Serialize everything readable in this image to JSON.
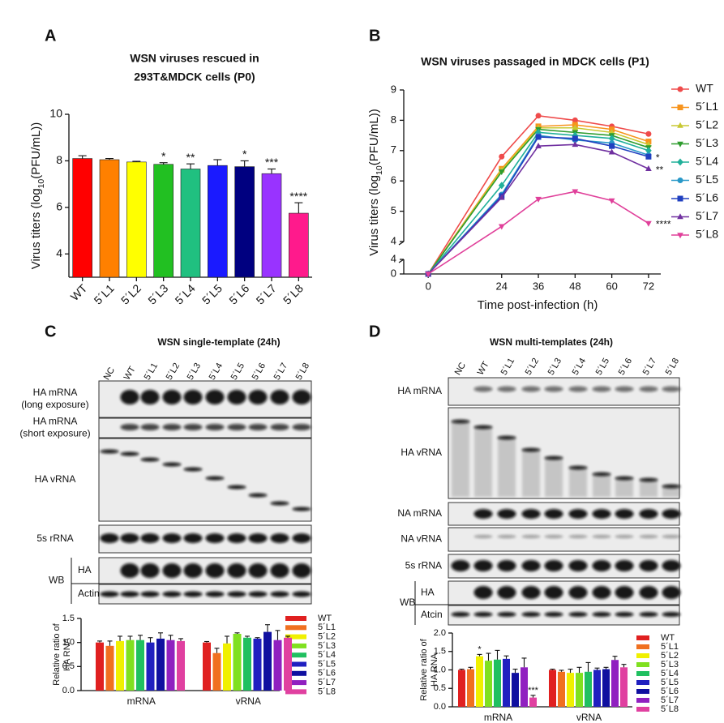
{
  "chart_data": [
    {
      "type": "bar",
      "panel": "A",
      "title_lines": [
        "WSN viruses rescued in",
        "293T&MDCK cells (P0)"
      ],
      "ylabel_parts": [
        "Virus titers (log",
        "10",
        "(PFU/mL))"
      ],
      "categories": [
        "WT",
        "5´L1",
        "5´L2",
        "5´L3",
        "5´L4",
        "5´L5",
        "5´L6",
        "5´L7",
        "5´L8"
      ],
      "values": [
        8.1,
        8.05,
        7.95,
        7.85,
        7.65,
        7.8,
        7.75,
        7.45,
        5.75
      ],
      "errors": [
        0.12,
        0.05,
        0.03,
        0.07,
        0.22,
        0.25,
        0.25,
        0.2,
        0.45
      ],
      "sig": [
        null,
        null,
        null,
        "*",
        "**",
        null,
        "*",
        "***",
        "****"
      ],
      "colors": [
        "#ff0000",
        "#ff8000",
        "#ffff00",
        "#22c022",
        "#20c080",
        "#1a1aff",
        "#000080",
        "#9933ff",
        "#ff1a8c"
      ],
      "ylim": [
        3,
        10
      ],
      "yticks": [
        4,
        6,
        8,
        10
      ]
    },
    {
      "type": "line",
      "panel": "B",
      "title": "WSN viruses passaged in MDCK cells (P1)",
      "ylabel_parts": [
        "Virus titers (log",
        "10",
        "(PFU/mL))"
      ],
      "xlabel": "Time post-infection (h)",
      "x": [
        0,
        24,
        36,
        48,
        60,
        72
      ],
      "xlim": [
        -8,
        76
      ],
      "xticks": [
        0,
        24,
        36,
        48,
        60,
        72
      ],
      "ylim": [
        4,
        9
      ],
      "yticks": [
        4,
        5,
        6,
        7,
        8,
        9
      ],
      "ylim_lower": [
        0,
        4
      ],
      "yticks_lower": [
        0,
        4
      ],
      "series": [
        {
          "name": "WT",
          "color": "#ef4b4b",
          "marker": "circle",
          "values": [
            0,
            6.8,
            8.15,
            8.0,
            7.8,
            7.55
          ]
        },
        {
          "name": "5´L1",
          "color": "#f7941d",
          "marker": "square",
          "values": [
            0,
            6.4,
            7.8,
            7.85,
            7.7,
            7.3
          ]
        },
        {
          "name": "5´L2",
          "color": "#c8c832",
          "marker": "triangle-up",
          "values": [
            0,
            6.35,
            7.75,
            7.75,
            7.6,
            7.2
          ]
        },
        {
          "name": "5´L3",
          "color": "#2e9c2e",
          "marker": "triangle-down",
          "values": [
            0,
            6.3,
            7.7,
            7.6,
            7.5,
            7.1
          ]
        },
        {
          "name": "5´L4",
          "color": "#20b09a",
          "marker": "diamond",
          "values": [
            0,
            5.85,
            7.6,
            7.5,
            7.4,
            7.0
          ]
        },
        {
          "name": "5´L5",
          "color": "#2898c8",
          "marker": "circle",
          "values": [
            0,
            5.55,
            7.5,
            7.35,
            7.25,
            6.85
          ]
        },
        {
          "name": "5´L6",
          "color": "#2040c0",
          "marker": "square",
          "values": [
            0,
            5.5,
            7.45,
            7.4,
            7.15,
            6.8
          ],
          "sig": "*"
        },
        {
          "name": "5´L7",
          "color": "#7030a0",
          "marker": "triangle-up",
          "values": [
            0,
            5.45,
            7.15,
            7.2,
            6.95,
            6.4
          ],
          "sig": "**"
        },
        {
          "name": "5´L8",
          "color": "#e0409a",
          "marker": "triangle-down",
          "values": [
            0,
            4.5,
            5.4,
            5.65,
            5.35,
            4.6
          ],
          "sig": "****"
        }
      ]
    },
    {
      "type": "bar",
      "ylabel_lines": [
        "Relative ratio of",
        "HA RNA"
      ],
      "categories": [
        "mRNA",
        "vRNA"
      ],
      "ylim": [
        0,
        1.5
      ],
      "yticks": [
        {
          "value": 0,
          "label": "0.0"
        },
        0.5,
        {
          "value": 1,
          "label": "1.0"
        },
        1.5
      ],
      "series": [
        {
          "name": "WT",
          "color": "#e02020",
          "values": [
            1.0,
            1.0
          ],
          "errors": [
            0.03,
            0.02
          ]
        },
        {
          "name": "5´L1",
          "color": "#f07020",
          "values": [
            0.93,
            0.78
          ],
          "errors": [
            0.1,
            0.1
          ]
        },
        {
          "name": "5´L2",
          "color": "#f0f000",
          "values": [
            1.03,
            0.98
          ],
          "errors": [
            0.1,
            0.15
          ]
        },
        {
          "name": "5´L3",
          "color": "#80e020",
          "values": [
            1.05,
            1.18
          ],
          "errors": [
            0.08,
            0.02
          ]
        },
        {
          "name": "5´L4",
          "color": "#20c060",
          "values": [
            1.05,
            1.1
          ],
          "errors": [
            0.1,
            0.03
          ]
        },
        {
          "name": "5´L5",
          "color": "#2020c0",
          "values": [
            1.0,
            1.08
          ],
          "errors": [
            0.1,
            0.02
          ]
        },
        {
          "name": "5´L6",
          "color": "#1010a0",
          "values": [
            1.08,
            1.22
          ],
          "errors": [
            0.12,
            0.15
          ]
        },
        {
          "name": "5´L7",
          "color": "#9020c0",
          "values": [
            1.05,
            1.05
          ],
          "errors": [
            0.1,
            0.2
          ]
        },
        {
          "name": "5´L8",
          "color": "#e040a0",
          "values": [
            1.03,
            1.1
          ],
          "errors": [
            0.05,
            0.03
          ]
        }
      ]
    },
    {
      "type": "bar",
      "ylabel_lines": [
        "Relative ratio of",
        "HA RNA"
      ],
      "categories": [
        "mRNA",
        "vRNA"
      ],
      "ylim": [
        0,
        2
      ],
      "yticks": [
        {
          "value": 0,
          "label": "0.0"
        },
        0.5,
        {
          "value": 1,
          "label": "1.0"
        },
        1.5,
        {
          "value": 2,
          "label": "2.0"
        }
      ],
      "series": [
        {
          "name": "WT",
          "color": "#e02020",
          "values": [
            1.0,
            1.0
          ],
          "errors": [
            0.02,
            0.02
          ]
        },
        {
          "name": "5´L1",
          "color": "#f07020",
          "values": [
            1.02,
            0.95
          ],
          "errors": [
            0.05,
            0.04
          ]
        },
        {
          "name": "5´L2",
          "color": "#f0f000",
          "values": [
            1.37,
            0.92
          ],
          "errors": [
            0.05,
            0.1
          ],
          "sig": [
            "*",
            null
          ]
        },
        {
          "name": "5´L3",
          "color": "#80e020",
          "values": [
            1.25,
            0.92
          ],
          "errors": [
            0.2,
            0.15
          ]
        },
        {
          "name": "5´L4",
          "color": "#20c060",
          "values": [
            1.28,
            0.95
          ],
          "errors": [
            0.25,
            0.25
          ]
        },
        {
          "name": "5´L5",
          "color": "#2020c0",
          "values": [
            1.3,
            1.0
          ],
          "errors": [
            0.08,
            0.05
          ]
        },
        {
          "name": "5´L6",
          "color": "#1010a0",
          "values": [
            0.92,
            1.02
          ],
          "errors": [
            0.1,
            0.05
          ]
        },
        {
          "name": "5´L7",
          "color": "#9020c0",
          "values": [
            1.07,
            1.27
          ],
          "errors": [
            0.25,
            0.1
          ]
        },
        {
          "name": "5´L8",
          "color": "#e040a0",
          "values": [
            0.25,
            1.07
          ],
          "errors": [
            0.06,
            0.08
          ],
          "sig": [
            "***",
            null
          ]
        }
      ]
    }
  ],
  "blots": {
    "C": {
      "panel": "C",
      "title": "WSN  single-template (24h)",
      "lanes": [
        "NC",
        "WT",
        "5´L1",
        "5´L2",
        "5´L3",
        "5´L4",
        "5´L5",
        "5´L6",
        "5´L7",
        "5´L8"
      ],
      "rows": [
        [
          "HA mRNA",
          "(long exposure)"
        ],
        [
          "HA mRNA",
          "(short exposure)"
        ],
        [
          "HA vRNA"
        ],
        [
          "5s rRNA"
        ]
      ],
      "wb": "WB",
      "wb_rows": [
        "HA",
        "Actin"
      ]
    },
    "D": {
      "panel": "D",
      "title": "WSN multi-templates (24h)",
      "lanes": [
        "NC",
        "WT",
        "5´L1",
        "5´L2",
        "5´L3",
        "5´L4",
        "5´L5",
        "5´L6",
        "5´L7",
        "5´L8"
      ],
      "rows": [
        [
          "HA mRNA"
        ],
        [
          "HA vRNA"
        ],
        [
          "NA mRNA"
        ],
        [
          "NA vRNA"
        ],
        [
          "5s rRNA"
        ]
      ],
      "wb": "WB",
      "wb_rows": [
        "HA",
        "Atcin"
      ]
    }
  }
}
